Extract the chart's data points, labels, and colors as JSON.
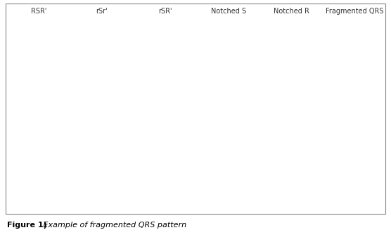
{
  "labels": [
    "RSR'",
    "rSr'",
    "rSR'",
    "Notched S",
    "Notched R",
    "Fragmented QRS"
  ],
  "background": "#ffffff",
  "ecg_color": "#111111",
  "grid_color": "#cccccc",
  "box_bg": "#f8f8f8",
  "fig_width": 5.56,
  "fig_height": 3.44,
  "label_fontsize": 7.0,
  "caption_bold": "Figure 1)",
  "caption_italic": " Example of fragmented QRS pattern",
  "caption_fontsize": 8.0
}
